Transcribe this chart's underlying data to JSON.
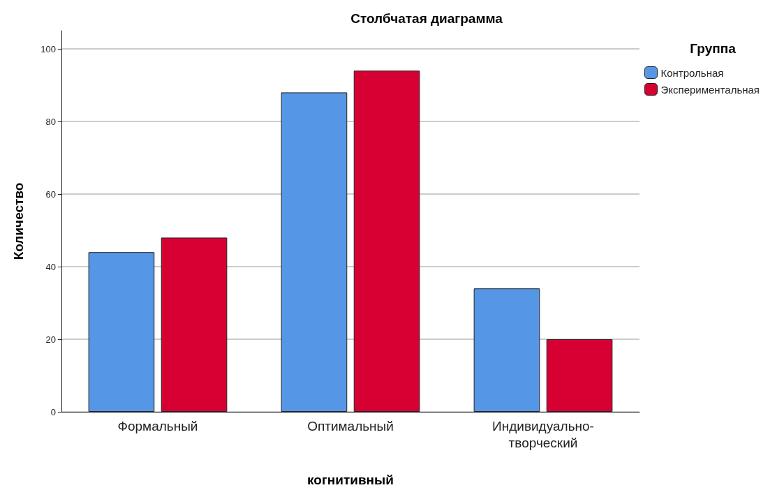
{
  "chart_data": {
    "type": "bar",
    "title": "Столбчатая диаграмма",
    "xlabel": "когнитивный",
    "ylabel": "Количество",
    "legend_title": "Группа",
    "categories": [
      "Формальный",
      "Оптимальный",
      "Индивидуально-творческий"
    ],
    "series": [
      {
        "name": "Контрольная",
        "color": "#5596e6",
        "values": [
          44,
          88,
          34
        ]
      },
      {
        "name": "Экспериментальная",
        "color": "#d60032",
        "values": [
          48,
          94,
          20
        ]
      }
    ],
    "ylim": [
      0,
      105
    ],
    "yticks": [
      0,
      20,
      40,
      60,
      80,
      100
    ],
    "grid": "y",
    "legend": "top right"
  }
}
